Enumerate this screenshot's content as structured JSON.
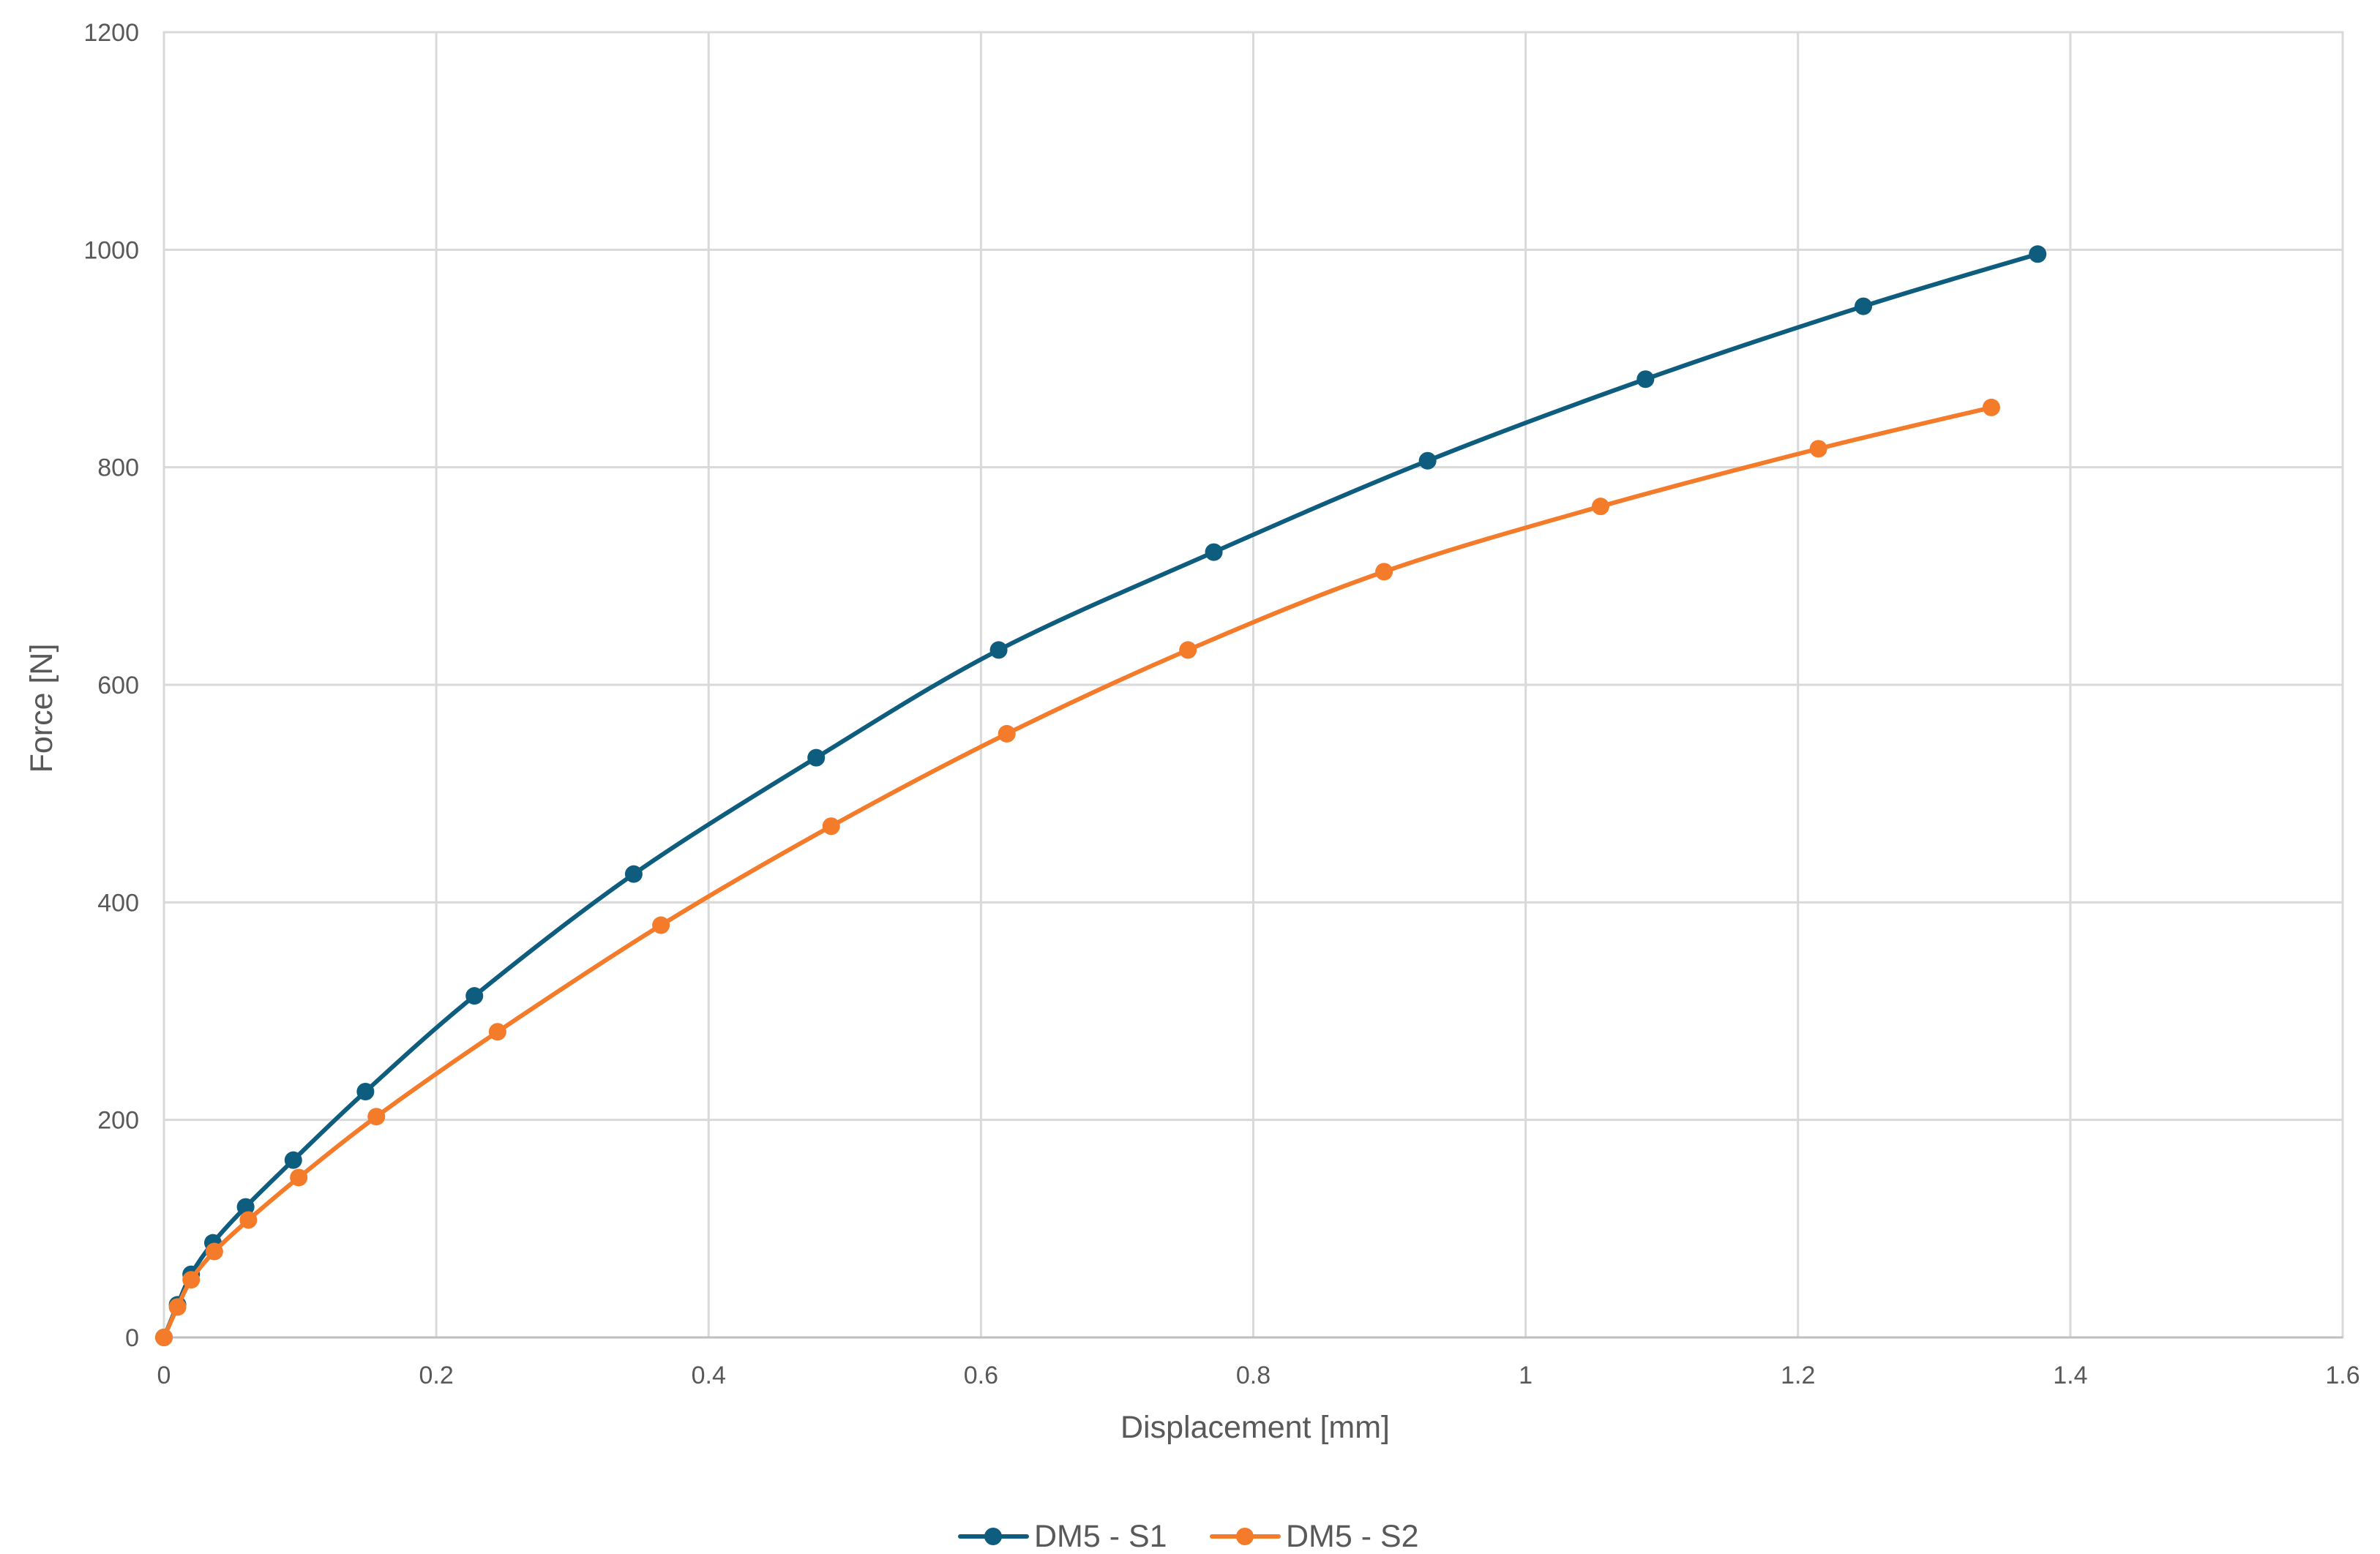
{
  "chart_data": {
    "type": "line",
    "title": "",
    "xlabel": "Displacement [mm]",
    "ylabel": "Force [N]",
    "xlim": [
      0,
      1.6
    ],
    "ylim": [
      0,
      1200
    ],
    "xticks": [
      0,
      0.2,
      0.4,
      0.6,
      0.8,
      1,
      1.2,
      1.4,
      1.6
    ],
    "yticks": [
      0,
      200,
      400,
      600,
      800,
      1000,
      1200
    ],
    "xtick_labels": [
      "0",
      "0.2",
      "0.4",
      "0.6",
      "0.8",
      "1",
      "1.2",
      "1.4",
      "1.6"
    ],
    "ytick_labels": [
      "0",
      "200",
      "400",
      "600",
      "800",
      "1000",
      "1200"
    ],
    "grid": true,
    "legend_position": "bottom-center",
    "smooth_lines": true,
    "series": [
      {
        "name": "DM5 - S1",
        "color": "#0E5C7E",
        "marker": "circle",
        "points": [
          [
            0,
            0
          ],
          [
            0.01,
            30
          ],
          [
            0.02,
            58
          ],
          [
            0.036,
            87
          ],
          [
            0.06,
            120
          ],
          [
            0.095,
            163
          ],
          [
            0.148,
            226
          ],
          [
            0.228,
            314
          ],
          [
            0.345,
            426
          ],
          [
            0.479,
            533
          ],
          [
            0.613,
            632
          ],
          [
            0.771,
            722
          ],
          [
            0.928,
            806
          ],
          [
            1.088,
            881
          ],
          [
            1.248,
            948
          ],
          [
            1.376,
            996
          ]
        ]
      },
      {
        "name": "DM5 - S2",
        "color": "#F47B2A",
        "marker": "circle",
        "points": [
          [
            0,
            0
          ],
          [
            0.01,
            28
          ],
          [
            0.02,
            53
          ],
          [
            0.037,
            79
          ],
          [
            0.062,
            108
          ],
          [
            0.099,
            147
          ],
          [
            0.156,
            203
          ],
          [
            0.245,
            281
          ],
          [
            0.365,
            379
          ],
          [
            0.49,
            470
          ],
          [
            0.619,
            555
          ],
          [
            0.752,
            632
          ],
          [
            0.896,
            704
          ],
          [
            1.055,
            764
          ],
          [
            1.215,
            817
          ],
          [
            1.342,
            855
          ]
        ]
      }
    ]
  }
}
